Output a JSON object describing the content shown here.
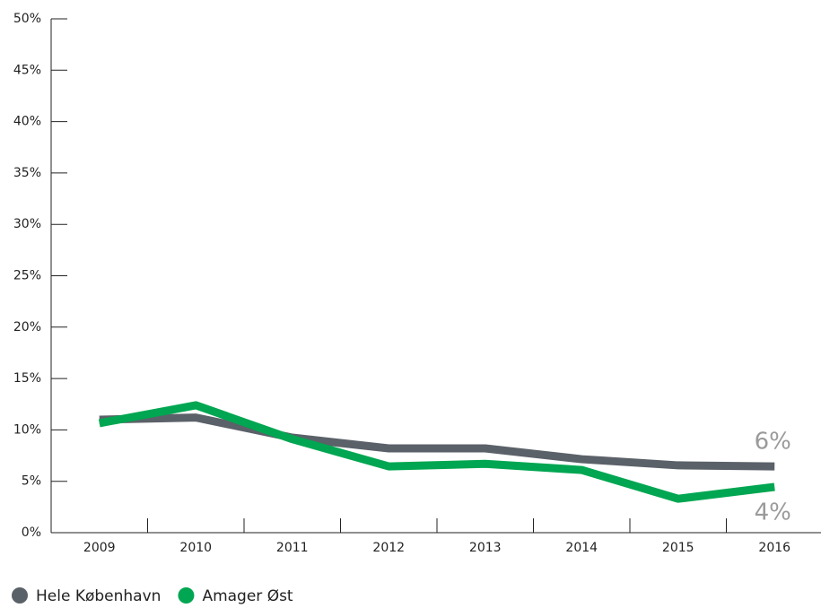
{
  "chart_data": {
    "type": "line",
    "categories": [
      "2009",
      "2010",
      "2011",
      "2012",
      "2013",
      "2014",
      "2015",
      "2016"
    ],
    "series": [
      {
        "name": "Hele København",
        "color": "#5b6169",
        "values": [
          11.0,
          11.2,
          9.25,
          8.2,
          8.2,
          7.15,
          6.55,
          6.45
        ]
      },
      {
        "name": "Amager Øst",
        "color": "#00a651",
        "values": [
          10.65,
          12.4,
          9.1,
          6.45,
          6.7,
          6.1,
          3.3,
          4.45
        ]
      }
    ],
    "annotations": [
      "6%",
      "4%"
    ],
    "ylim": [
      0,
      50
    ],
    "yticks": [
      {
        "value": 0,
        "label": "0%"
      },
      {
        "value": 5,
        "label": "5%"
      },
      {
        "value": 10,
        "label": "10%"
      },
      {
        "value": 15,
        "label": "15%"
      },
      {
        "value": 20,
        "label": "20%"
      },
      {
        "value": 25,
        "label": "25%"
      },
      {
        "value": 30,
        "label": "30%"
      },
      {
        "value": 35,
        "label": "35%"
      },
      {
        "value": 40,
        "label": "40%"
      },
      {
        "value": 45,
        "label": "45%"
      },
      {
        "value": 50,
        "label": "50%"
      }
    ],
    "legend": "bottom-left"
  }
}
